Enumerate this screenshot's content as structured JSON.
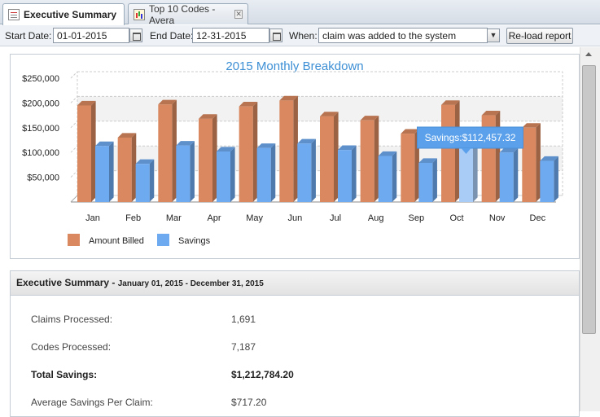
{
  "tabs": [
    {
      "label": "Executive Summary",
      "icon": "document-icon",
      "active": true
    },
    {
      "label": "Top 10 Codes - Avera",
      "icon": "chart-icon",
      "active": false
    }
  ],
  "toolbar": {
    "start_label": "Start Date:",
    "start_value": "01-01-2015",
    "end_label": "End Date:",
    "end_value": "12-31-2015",
    "when_label": "When:",
    "when_value": "claim was added to the system",
    "reload_label": "Re-load report"
  },
  "chart_data": {
    "type": "bar",
    "title": "2015 Monthly Breakdown",
    "categories": [
      "Jan",
      "Feb",
      "Mar",
      "Apr",
      "May",
      "Jun",
      "Jul",
      "Aug",
      "Sep",
      "Oct",
      "Nov",
      "Dec"
    ],
    "series": [
      {
        "name": "Amount Billed",
        "color": "#d9885f",
        "values": [
          195000,
          130000,
          197000,
          168000,
          193000,
          205000,
          173000,
          165000,
          138000,
          196000,
          175000,
          150000
        ]
      },
      {
        "name": "Savings",
        "color": "#6eaaf0",
        "values": [
          113000,
          77000,
          114000,
          102000,
          109000,
          118000,
          105000,
          93000,
          79000,
          112457.32,
          100000,
          83000
        ]
      }
    ],
    "y_ticks": [
      "$50,000",
      "$100,000",
      "$150,000",
      "$200,000",
      "$250,000"
    ],
    "ylim": [
      0,
      250000
    ],
    "grid": true,
    "legend_position": "bottom-left",
    "highlight": {
      "series": "Savings",
      "category": "Oct"
    },
    "tooltip": "Savings:$112,457.32"
  },
  "summary": {
    "title": "Executive Summary",
    "range": "January 01, 2015 - December 31, 2015",
    "rows": [
      {
        "label": "Claims Processed:",
        "value": "1,691",
        "bold": false
      },
      {
        "label": "Codes Processed:",
        "value": "7,187",
        "bold": false
      },
      {
        "label": "Total Savings:",
        "value": "$1,212,784.20",
        "bold": true
      },
      {
        "label": "Average Savings Per Claim:",
        "value": "$717.20",
        "bold": false
      }
    ]
  }
}
